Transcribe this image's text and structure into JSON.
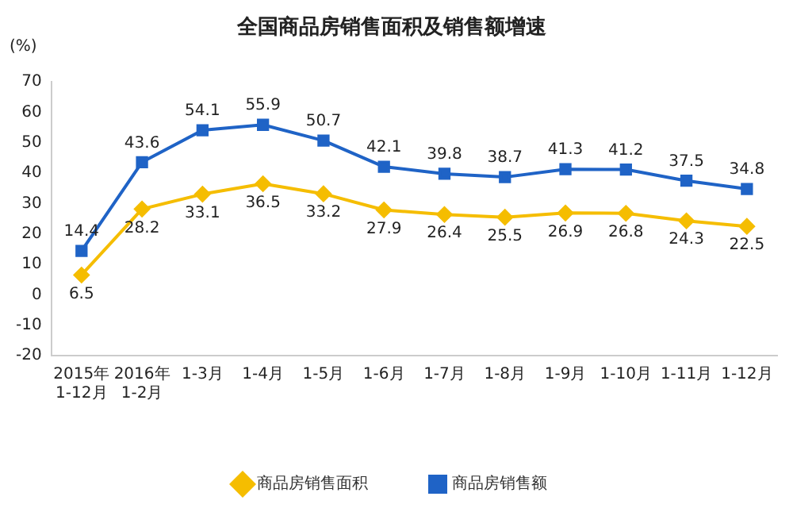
{
  "chart_data": {
    "type": "line",
    "title": "全国商品房销售面积及销售额增速",
    "ylabel": "(%)",
    "categories": [
      "2015年 1-12月",
      "2016年 1-2月",
      "1-3月",
      "1-4月",
      "1-5月",
      "1-6月",
      "1-7月",
      "1-8月",
      "1-9月",
      "1-10月",
      "1-11月",
      "1-12月"
    ],
    "series": [
      {
        "name": "商品房销售面积",
        "color": "#f5bd00",
        "marker": "diamond",
        "values": [
          6.5,
          28.2,
          33.1,
          36.5,
          33.2,
          27.9,
          26.4,
          25.5,
          26.9,
          26.8,
          24.3,
          22.5
        ]
      },
      {
        "name": "商品房销售额",
        "color": "#1f63c6",
        "marker": "square",
        "values": [
          14.4,
          43.6,
          54.1,
          55.9,
          50.7,
          42.1,
          39.8,
          38.7,
          41.3,
          41.2,
          37.5,
          34.8
        ]
      }
    ],
    "ylim": [
      -20,
      70
    ],
    "yticks": [
      -20,
      -10,
      0,
      10,
      20,
      30,
      40,
      50,
      60,
      70
    ],
    "grid": false,
    "legend": "bottom",
    "data_labels": true
  }
}
